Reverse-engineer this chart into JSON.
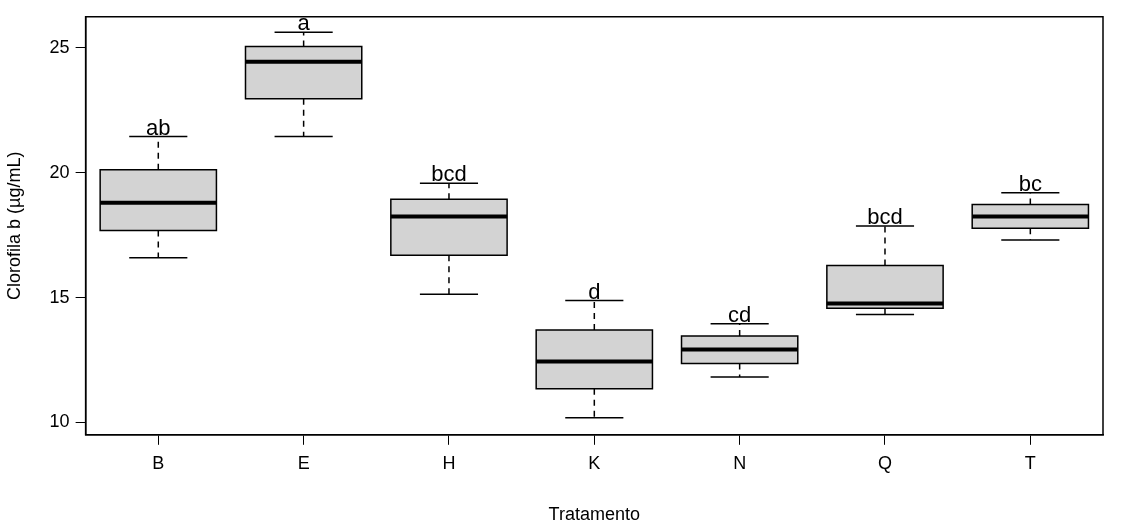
{
  "chart_data": {
    "type": "box",
    "xlabel": "Tratamento",
    "ylabel": "Clorofila b (µg/mL)",
    "categories": [
      "B",
      "E",
      "H",
      "K",
      "N",
      "Q",
      "T"
    ],
    "ylim": [
      9.5,
      26.25
    ],
    "yticks": [
      10,
      15,
      20,
      25
    ],
    "series": [
      {
        "color": "#d3d3d3",
        "boxes": [
          {
            "low": 16.59,
            "q1": 17.69,
            "median": 18.8,
            "q3": 20.12,
            "high": 21.45
          },
          {
            "low": 21.45,
            "q1": 22.97,
            "median": 24.45,
            "q3": 25.06,
            "high": 25.63
          },
          {
            "low": 15.13,
            "q1": 16.69,
            "median": 18.25,
            "q3": 18.94,
            "high": 19.58
          },
          {
            "low": 10.18,
            "q1": 11.35,
            "median": 12.44,
            "q3": 13.7,
            "high": 14.88
          },
          {
            "low": 11.82,
            "q1": 12.36,
            "median": 12.92,
            "q3": 13.46,
            "high": 13.95
          },
          {
            "low": 14.32,
            "q1": 14.57,
            "median": 14.76,
            "q3": 16.28,
            "high": 17.87
          },
          {
            "low": 17.31,
            "q1": 17.78,
            "median": 18.25,
            "q3": 18.73,
            "high": 19.2
          }
        ]
      }
    ],
    "annotations": [
      {
        "text": "ab",
        "x": "B",
        "y": 21.45
      },
      {
        "text": "a",
        "x": "E",
        "y": 25.63
      },
      {
        "text": "bcd",
        "x": "H",
        "y": 19.58
      },
      {
        "text": "d",
        "x": "K",
        "y": 14.88
      },
      {
        "text": "cd",
        "x": "N",
        "y": 13.95
      },
      {
        "text": "bcd",
        "x": "Q",
        "y": 17.87
      },
      {
        "text": "bc",
        "x": "T",
        "y": 19.2
      }
    ]
  }
}
